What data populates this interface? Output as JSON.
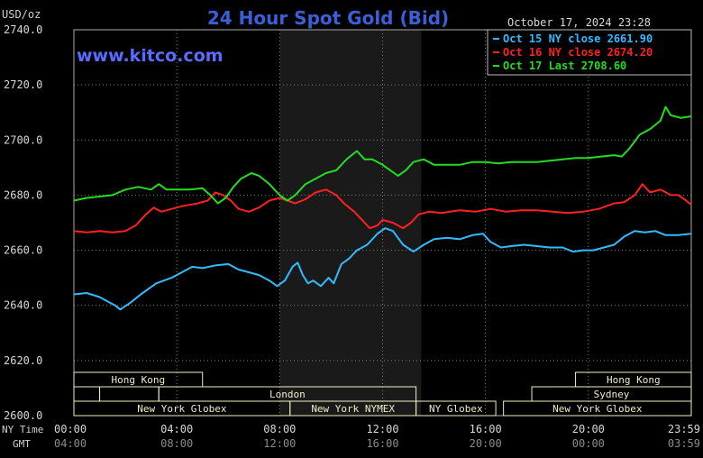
{
  "header": {
    "unit": "USD/oz",
    "title": "24 Hour Spot Gold (Bid)",
    "timestamp": "October 17, 2024 23:28",
    "watermark": "www.kitco.com"
  },
  "colors": {
    "background": "#000000",
    "plot": "#000000",
    "night_band": "#1a1a1a",
    "grid": "#808080",
    "title": "#3b5fd9",
    "watermark": "#5a6cff",
    "session_box": "#f2ecc2",
    "session_text": "#000000"
  },
  "legend": [
    {
      "label": "Oct 15 NY close 2661.90",
      "color": "#33bbff"
    },
    {
      "label": "Oct 16 NY close 2674.20",
      "color": "#ff2020"
    },
    {
      "label": "Oct 17 Last 2708.60",
      "color": "#22dd22"
    }
  ],
  "axis_labels": {
    "ny_time": "NY Time",
    "gmt": "GMT"
  },
  "ny_ticks": [
    "00:00",
    "04:00",
    "08:00",
    "12:00",
    "16:00",
    "20:00",
    "23:59"
  ],
  "gmt_ticks": [
    "04:00",
    "08:00",
    "12:00",
    "16:00",
    "20:00",
    "00:00",
    "03:59"
  ],
  "y_ticks": [
    "2600.0",
    "2620.0",
    "2640.0",
    "2660.0",
    "2680.0",
    "2700.0",
    "2720.0",
    "2740.0"
  ],
  "sessions": [
    {
      "label": "Hong Kong",
      "row": 0,
      "start": 0.0,
      "end": 5.0
    },
    {
      "label": "Hong Kong",
      "row": 0,
      "start": 19.5,
      "end": 24.0
    },
    {
      "label": "",
      "row": 1,
      "start": 0.0,
      "end": 1.0
    },
    {
      "label": "",
      "row": 1,
      "start": 1.0,
      "end": 3.3
    },
    {
      "label": "London",
      "row": 1,
      "start": 3.3,
      "end": 13.3
    },
    {
      "label": "Sydney",
      "row": 1,
      "start": 17.8,
      "end": 24.0
    },
    {
      "label": "New York Globex",
      "row": 2,
      "start": 0.0,
      "end": 8.4
    },
    {
      "label": "New York NYMEX",
      "row": 2,
      "start": 8.4,
      "end": 13.3
    },
    {
      "label": "NY Globex",
      "row": 2,
      "start": 13.3,
      "end": 16.4
    },
    {
      "label": "New York Globex",
      "row": 2,
      "start": 16.7,
      "end": 24.0
    }
  ],
  "chart_data": {
    "type": "line",
    "title": "24 Hour Spot Gold (Bid)",
    "ylabel": "USD/oz",
    "xlabel": "",
    "x_unit": "hours (NY Time)",
    "xlim": [
      0,
      24
    ],
    "ylim": [
      2600,
      2740
    ],
    "grid": true,
    "legend_position": "top-right",
    "night_band": [
      8,
      13.5
    ],
    "series": [
      {
        "name": "Oct 15 NY close 2661.90",
        "color": "#33bbff",
        "points": [
          [
            0,
            2644
          ],
          [
            0.5,
            2644.5
          ],
          [
            1,
            2643
          ],
          [
            1.4,
            2641
          ],
          [
            1.6,
            2640
          ],
          [
            1.8,
            2638.5
          ],
          [
            2.2,
            2641
          ],
          [
            2.6,
            2644
          ],
          [
            3.2,
            2648
          ],
          [
            3.8,
            2650
          ],
          [
            4.2,
            2652
          ],
          [
            4.6,
            2654
          ],
          [
            5.0,
            2653.5
          ],
          [
            5.5,
            2654.5
          ],
          [
            6.0,
            2655
          ],
          [
            6.4,
            2653
          ],
          [
            6.8,
            2652
          ],
          [
            7.2,
            2651
          ],
          [
            7.6,
            2649
          ],
          [
            7.9,
            2647
          ],
          [
            8.2,
            2649
          ],
          [
            8.5,
            2654
          ],
          [
            8.7,
            2655.5
          ],
          [
            8.9,
            2651
          ],
          [
            9.1,
            2648
          ],
          [
            9.3,
            2649
          ],
          [
            9.6,
            2647
          ],
          [
            9.9,
            2650
          ],
          [
            10.1,
            2648
          ],
          [
            10.4,
            2655
          ],
          [
            10.7,
            2657
          ],
          [
            11.0,
            2660
          ],
          [
            11.4,
            2662
          ],
          [
            11.8,
            2666
          ],
          [
            12.1,
            2668
          ],
          [
            12.4,
            2667
          ],
          [
            12.8,
            2662
          ],
          [
            13.2,
            2659.5
          ],
          [
            13.6,
            2662
          ],
          [
            14.0,
            2664
          ],
          [
            14.5,
            2664.5
          ],
          [
            15.0,
            2664
          ],
          [
            15.5,
            2665.5
          ],
          [
            15.9,
            2666
          ],
          [
            16.2,
            2663
          ],
          [
            16.6,
            2661
          ],
          [
            17.0,
            2661.5
          ],
          [
            17.5,
            2662
          ],
          [
            18.0,
            2661.5
          ],
          [
            18.5,
            2661
          ],
          [
            19.0,
            2661
          ],
          [
            19.4,
            2659.5
          ],
          [
            19.8,
            2660
          ],
          [
            20.2,
            2660
          ],
          [
            20.6,
            2661
          ],
          [
            21.0,
            2662
          ],
          [
            21.4,
            2665
          ],
          [
            21.8,
            2667
          ],
          [
            22.2,
            2666.5
          ],
          [
            22.6,
            2667
          ],
          [
            23.0,
            2665.5
          ],
          [
            23.5,
            2665.5
          ],
          [
            24.0,
            2666
          ]
        ]
      },
      {
        "name": "Oct 16 NY close 2674.20",
        "color": "#ff2020",
        "points": [
          [
            0,
            2667
          ],
          [
            0.5,
            2666.5
          ],
          [
            1,
            2667
          ],
          [
            1.5,
            2666.5
          ],
          [
            2.0,
            2667
          ],
          [
            2.4,
            2669
          ],
          [
            2.8,
            2673
          ],
          [
            3.1,
            2675.5
          ],
          [
            3.4,
            2674
          ],
          [
            3.8,
            2675
          ],
          [
            4.2,
            2676
          ],
          [
            4.8,
            2677
          ],
          [
            5.2,
            2678
          ],
          [
            5.5,
            2681
          ],
          [
            5.8,
            2680
          ],
          [
            6.1,
            2678
          ],
          [
            6.4,
            2675
          ],
          [
            6.8,
            2674
          ],
          [
            7.2,
            2675.5
          ],
          [
            7.6,
            2678
          ],
          [
            8.0,
            2679
          ],
          [
            8.3,
            2678
          ],
          [
            8.6,
            2677
          ],
          [
            9.0,
            2678.5
          ],
          [
            9.4,
            2681
          ],
          [
            9.8,
            2682
          ],
          [
            10.2,
            2680
          ],
          [
            10.5,
            2677
          ],
          [
            10.9,
            2674
          ],
          [
            11.2,
            2671
          ],
          [
            11.5,
            2668
          ],
          [
            11.8,
            2669
          ],
          [
            12.0,
            2671
          ],
          [
            12.4,
            2670
          ],
          [
            12.8,
            2668
          ],
          [
            13.1,
            2670
          ],
          [
            13.4,
            2673
          ],
          [
            13.8,
            2674
          ],
          [
            14.3,
            2673.5
          ],
          [
            15.0,
            2674.5
          ],
          [
            15.6,
            2674
          ],
          [
            16.2,
            2675
          ],
          [
            16.8,
            2674
          ],
          [
            17.4,
            2674.5
          ],
          [
            18.0,
            2674.5
          ],
          [
            18.6,
            2674
          ],
          [
            19.2,
            2673.5
          ],
          [
            19.8,
            2674
          ],
          [
            20.4,
            2675
          ],
          [
            21.0,
            2677
          ],
          [
            21.4,
            2677.5
          ],
          [
            21.8,
            2680
          ],
          [
            22.1,
            2684
          ],
          [
            22.4,
            2681
          ],
          [
            22.8,
            2682
          ],
          [
            23.2,
            2680
          ],
          [
            23.5,
            2680
          ],
          [
            23.8,
            2678
          ],
          [
            24.0,
            2676.5
          ]
        ]
      },
      {
        "name": "Oct 17 Last 2708.60",
        "color": "#22dd22",
        "points": [
          [
            0,
            2678
          ],
          [
            0.5,
            2679
          ],
          [
            1,
            2679.5
          ],
          [
            1.5,
            2680
          ],
          [
            2.0,
            2682
          ],
          [
            2.5,
            2683
          ],
          [
            3.0,
            2682
          ],
          [
            3.3,
            2684
          ],
          [
            3.6,
            2682
          ],
          [
            4.0,
            2682
          ],
          [
            4.5,
            2682
          ],
          [
            5.0,
            2682.5
          ],
          [
            5.3,
            2680
          ],
          [
            5.6,
            2677
          ],
          [
            5.9,
            2679
          ],
          [
            6.2,
            2683
          ],
          [
            6.5,
            2686
          ],
          [
            6.9,
            2688
          ],
          [
            7.2,
            2687
          ],
          [
            7.6,
            2684
          ],
          [
            8.0,
            2680
          ],
          [
            8.3,
            2678
          ],
          [
            8.6,
            2680
          ],
          [
            9.0,
            2684
          ],
          [
            9.4,
            2686
          ],
          [
            9.8,
            2688
          ],
          [
            10.2,
            2689
          ],
          [
            10.6,
            2693
          ],
          [
            11.0,
            2696
          ],
          [
            11.3,
            2693
          ],
          [
            11.6,
            2693
          ],
          [
            12.0,
            2691
          ],
          [
            12.3,
            2689
          ],
          [
            12.6,
            2687
          ],
          [
            12.9,
            2689
          ],
          [
            13.2,
            2692
          ],
          [
            13.6,
            2693
          ],
          [
            14.0,
            2691
          ],
          [
            14.5,
            2691
          ],
          [
            15.0,
            2691
          ],
          [
            15.5,
            2692
          ],
          [
            16.0,
            2692
          ],
          [
            16.5,
            2691.5
          ],
          [
            17.0,
            2692
          ],
          [
            17.5,
            2692
          ],
          [
            18.0,
            2692
          ],
          [
            18.5,
            2692.5
          ],
          [
            19.0,
            2693
          ],
          [
            19.5,
            2693.5
          ],
          [
            20.0,
            2693.5
          ],
          [
            20.5,
            2694
          ],
          [
            21.0,
            2694.5
          ],
          [
            21.3,
            2694
          ],
          [
            21.6,
            2697
          ],
          [
            22.0,
            2702
          ],
          [
            22.4,
            2704
          ],
          [
            22.8,
            2707
          ],
          [
            23.0,
            2712
          ],
          [
            23.2,
            2709
          ],
          [
            23.6,
            2708
          ],
          [
            24.0,
            2708.6
          ]
        ]
      }
    ]
  }
}
